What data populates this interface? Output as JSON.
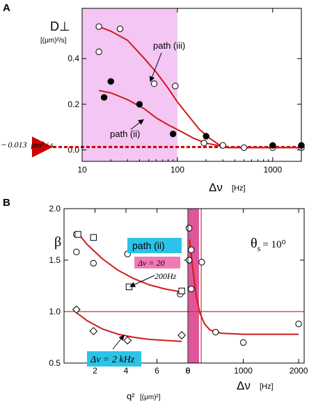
{
  "panel_a_label": "A",
  "panel_b_label": "B",
  "colors": {
    "fit": "#d11a1a",
    "shade": "#f3c6f3",
    "shade_b": "#e0559a",
    "annot_path": "#2bc4e8",
    "annot_dv": "#f07ab4",
    "arrow": "#cc0000"
  },
  "chart_data": [
    {
      "id": "A",
      "type": "scatter",
      "x_scale": "log",
      "xlim": [
        10,
        2000
      ],
      "ylim": [
        -0.05,
        0.62
      ],
      "xlabel": "Δν",
      "xlabel_unit": "[Hz]",
      "ylabel": "D⊥",
      "ylabel_unit": "[(μm)²/s]",
      "x_ticks": [
        {
          "value": 10,
          "label": "10"
        },
        {
          "value": 100,
          "label": "100"
        },
        {
          "value": 1000,
          "label": "1000"
        }
      ],
      "y_ticks": [
        {
          "value": 0.0,
          "label": "0.0"
        },
        {
          "value": 0.2,
          "label": "0.2"
        },
        {
          "value": 0.4,
          "label": "0.4"
        }
      ],
      "shaded_region_x": [
        10,
        100
      ],
      "series": [
        {
          "name": "path (iii)",
          "marker": "open-circle",
          "points": [
            [
              15,
              0.54
            ],
            [
              15,
              0.43
            ],
            [
              25,
              0.53
            ],
            [
              57,
              0.29
            ],
            [
              95,
              0.28
            ],
            [
              190,
              0.03
            ],
            [
              300,
              0.02
            ],
            [
              500,
              0.01
            ],
            [
              1000,
              0.01
            ],
            [
              2000,
              0.01
            ]
          ]
        },
        {
          "name": "path (ii)",
          "marker": "filled-circle",
          "points": [
            [
              17,
              0.23
            ],
            [
              20,
              0.3
            ],
            [
              40,
              0.2
            ],
            [
              90,
              0.07
            ],
            [
              200,
              0.06
            ],
            [
              1000,
              0.02
            ],
            [
              2000,
              0.02
            ]
          ]
        }
      ],
      "fits": [
        {
          "name": "path (iii)",
          "points": [
            [
              15,
              0.54
            ],
            [
              20,
              0.52
            ],
            [
              30,
              0.48
            ],
            [
              45,
              0.4
            ],
            [
              60,
              0.34
            ],
            [
              80,
              0.27
            ],
            [
              100,
              0.21
            ],
            [
              130,
              0.15
            ],
            [
              170,
              0.09
            ],
            [
              220,
              0.05
            ],
            [
              280,
              0.02
            ],
            [
              350,
              0.01
            ],
            [
              500,
              0.01
            ],
            [
              1000,
              0.01
            ],
            [
              2000,
              0.01
            ]
          ]
        },
        {
          "name": "path (ii)",
          "points": [
            [
              15,
              0.26
            ],
            [
              20,
              0.25
            ],
            [
              30,
              0.22
            ],
            [
              45,
              0.18
            ],
            [
              60,
              0.14
            ],
            [
              80,
              0.11
            ],
            [
              110,
              0.08
            ],
            [
              150,
              0.05
            ],
            [
              200,
              0.03
            ],
            [
              260,
              0.02
            ],
            [
              330,
              0.01
            ],
            [
              500,
              0.01
            ],
            [
              1000,
              0.01
            ],
            [
              2000,
              0.01
            ]
          ]
        }
      ],
      "annotations": {
        "label_iii": "path (iii)",
        "label_ii": "path (ii)",
        "baseline": "~ 0.013",
        "baseline_unit": "μm² / s",
        "baseline_value": 0.013
      }
    },
    {
      "id": "B-left",
      "type": "scatter",
      "xlim": [
        0,
        8
      ],
      "ylim": [
        0.5,
        2.0
      ],
      "xlabel": "q²",
      "xlabel_unit": "[(μm)²]",
      "ylabel": "β",
      "x_ticks": [
        {
          "value": 2,
          "label": "2"
        },
        {
          "value": 4,
          "label": "4"
        },
        {
          "value": 6,
          "label": "6"
        },
        {
          "value": 8,
          "label": "8"
        }
      ],
      "y_ticks": [
        {
          "value": 0.5,
          "label": "0.5"
        },
        {
          "value": 1.0,
          "label": "1.0"
        },
        {
          "value": 1.5,
          "label": "1.5"
        },
        {
          "value": 2.0,
          "label": "2.0"
        }
      ],
      "reference_y": 1.0,
      "series": [
        {
          "name": "Δν = 20",
          "marker": "open-circle",
          "points": [
            [
              0.8,
              1.75
            ],
            [
              0.8,
              1.58
            ],
            [
              1.9,
              1.47
            ],
            [
              4.1,
              1.56
            ],
            [
              7.5,
              1.17
            ]
          ]
        },
        {
          "name": "200Hz",
          "marker": "open-square",
          "points": [
            [
              0.9,
              1.75
            ],
            [
              1.9,
              1.72
            ],
            [
              4.2,
              1.24
            ],
            [
              7.6,
              1.2
            ]
          ]
        },
        {
          "name": "Δν = 2 kHz",
          "marker": "open-diamond",
          "points": [
            [
              0.8,
              1.02
            ],
            [
              1.9,
              0.81
            ],
            [
              4.1,
              0.72
            ],
            [
              7.6,
              0.77
            ]
          ]
        }
      ],
      "fits": [
        {
          "name": "upper",
          "points": [
            [
              0.8,
              1.78
            ],
            [
              1.5,
              1.65
            ],
            [
              2.5,
              1.51
            ],
            [
              3.5,
              1.4
            ],
            [
              4.5,
              1.32
            ],
            [
              5.5,
              1.26
            ],
            [
              6.5,
              1.22
            ],
            [
              7.6,
              1.19
            ]
          ]
        },
        {
          "name": "lower",
          "points": [
            [
              0.8,
              0.99
            ],
            [
              1.5,
              0.91
            ],
            [
              2.5,
              0.83
            ],
            [
              3.5,
              0.78
            ],
            [
              4.5,
              0.75
            ],
            [
              5.5,
              0.73
            ],
            [
              6.5,
              0.72
            ],
            [
              7.6,
              0.71
            ]
          ]
        }
      ],
      "annotations": {
        "path_label": "path (ii)",
        "dv_top": "Δν = 20",
        "dv_top2": "200Hz",
        "dv_bottom": "Δν = 2 kHz"
      }
    },
    {
      "id": "B-right",
      "type": "scatter",
      "xlim": [
        0,
        2100
      ],
      "ylim": [
        0.5,
        2.0
      ],
      "xlabel": "Δν",
      "xlabel_unit": "[Hz]",
      "x_ticks": [
        {
          "value": 0,
          "label": "0"
        },
        {
          "value": 1000,
          "label": "1000"
        },
        {
          "value": 2000,
          "label": "2000"
        }
      ],
      "reference_y": 1.0,
      "shaded_region_x": [
        10,
        200
      ],
      "vertical_line_x": 240,
      "series": [
        {
          "name": "β",
          "marker": "open-circle",
          "points": [
            [
              20,
              1.81
            ],
            [
              60,
              1.6
            ],
            [
              20,
              1.5
            ],
            [
              60,
              1.22
            ],
            [
              250,
              1.48
            ],
            [
              500,
              0.8
            ],
            [
              1000,
              0.7
            ],
            [
              2000,
              0.88
            ]
          ]
        }
      ],
      "fits": [
        {
          "name": "fit",
          "points": [
            [
              30,
              1.7
            ],
            [
              80,
              1.45
            ],
            [
              150,
              1.15
            ],
            [
              220,
              0.98
            ],
            [
              300,
              0.88
            ],
            [
              400,
              0.82
            ],
            [
              600,
              0.79
            ],
            [
              1000,
              0.78
            ],
            [
              2000,
              0.78
            ]
          ]
        }
      ],
      "annotations": {
        "theta": "θ",
        "theta_sub": "s",
        "theta_value": "= 10⁰"
      }
    }
  ]
}
